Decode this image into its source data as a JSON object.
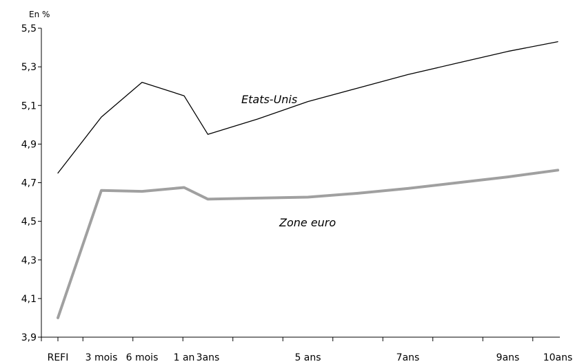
{
  "chart_data": {
    "type": "line",
    "unit_label": "En %",
    "title": "",
    "xlabel": "",
    "ylabel": "",
    "categories": [
      "REFI",
      "3 mois",
      "6 mois",
      "1 an",
      "3ans",
      "5 ans",
      "7ans",
      "9ans",
      "10ans"
    ],
    "x_years": [
      0,
      0.25,
      0.5,
      1,
      3,
      5,
      7,
      9,
      10
    ],
    "x_tick_positions_years": [
      0,
      0.5,
      1,
      2,
      3,
      4,
      5,
      6,
      7,
      8,
      9,
      10
    ],
    "ylim": [
      3.9,
      5.5
    ],
    "yticks": [
      "3,9",
      "4,1",
      "4,3",
      "4,5",
      "4,7",
      "4,9",
      "5,1",
      "5,3",
      "5,5"
    ],
    "ytick_values": [
      3.9,
      4.1,
      4.3,
      4.5,
      4.7,
      4.9,
      5.1,
      5.3,
      5.5
    ],
    "grid": false,
    "legend": "none",
    "series": [
      {
        "name": "Etats-Unis",
        "color": "#000000",
        "x": [
          0,
          0.5,
          1,
          2,
          3,
          4,
          5,
          6,
          7,
          8,
          9,
          10
        ],
        "values": [
          4.75,
          5.04,
          5.22,
          5.15,
          4.95,
          5.03,
          5.12,
          5.19,
          5.26,
          5.32,
          5.38,
          5.43
        ]
      },
      {
        "name": "Zone euro",
        "color": "#a0a0a0",
        "x": [
          0,
          0.5,
          1,
          2,
          3,
          4,
          5,
          6,
          7,
          8,
          9,
          10
        ],
        "values": [
          4.0,
          4.66,
          4.655,
          4.675,
          4.615,
          4.62,
          4.625,
          4.645,
          4.67,
          4.7,
          4.73,
          4.765
        ]
      }
    ]
  }
}
